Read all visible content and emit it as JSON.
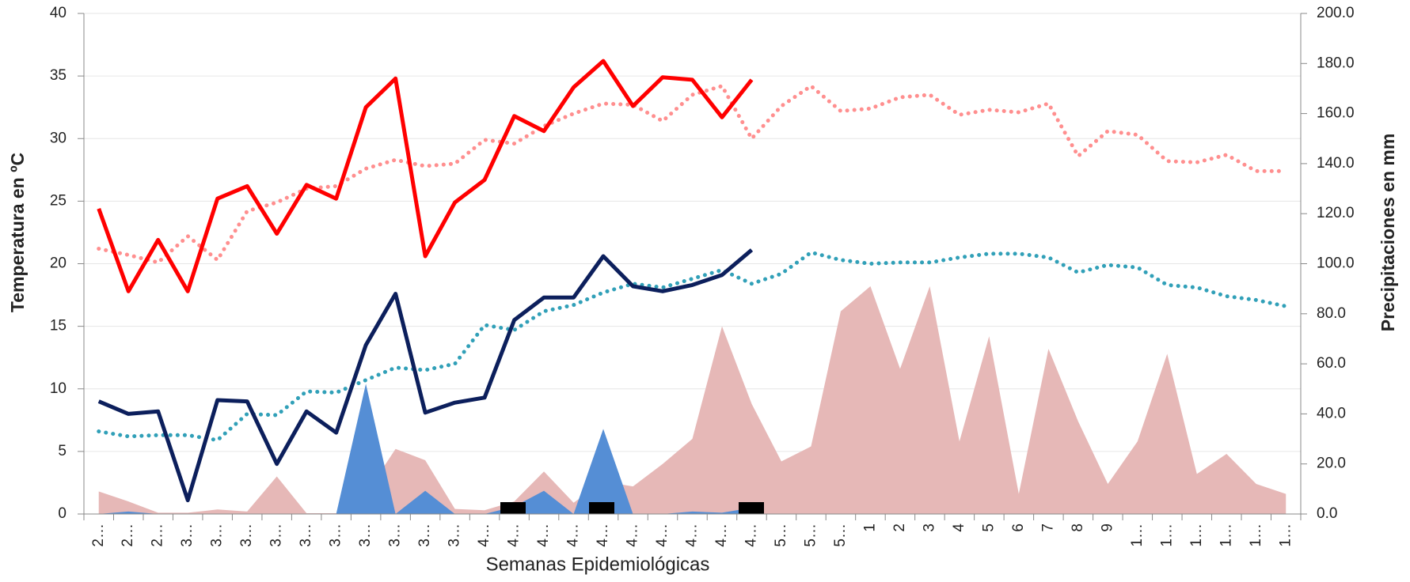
{
  "chart_data": {
    "type": "combo",
    "xlabel": "Semanas Epidemiológicas",
    "ylabel": "Temperatura en ºC",
    "y2label": "Precipitaciones en mm",
    "categories": [
      "2…",
      "2…",
      "2…",
      "3…",
      "3…",
      "3…",
      "3…",
      "3…",
      "3…",
      "3…",
      "3…",
      "3…",
      "3…",
      "4…",
      "4…",
      "4…",
      "4…",
      "4…",
      "4…",
      "4…",
      "4…",
      "4…",
      "4…",
      "5…",
      "5…",
      "5…",
      "1",
      "2",
      "3",
      "4",
      "5",
      "6",
      "7",
      "8",
      "9",
      "1…",
      "1…",
      "1…",
      "1…",
      "1…",
      "1…"
    ],
    "ylim": [
      0,
      40
    ],
    "yticks": [
      0,
      5,
      10,
      15,
      20,
      25,
      30,
      35,
      40
    ],
    "y2lim": [
      0,
      200
    ],
    "y2ticks": [
      {
        "value": 0,
        "label": "0.0"
      },
      {
        "value": 20,
        "label": "20.0"
      },
      {
        "value": 40,
        "label": "40.0"
      },
      {
        "value": 60,
        "label": "60.0"
      },
      {
        "value": 80,
        "label": "80.0"
      },
      {
        "value": 100,
        "label": "100.0"
      },
      {
        "value": 120,
        "label": "120.0"
      },
      {
        "value": 140,
        "label": "140.0"
      },
      {
        "value": 160,
        "label": "160.0"
      },
      {
        "value": 180,
        "label": "180.0"
      },
      {
        "value": 200,
        "label": "200.0"
      }
    ],
    "grid": true,
    "series": [
      {
        "type": "area",
        "axis": "y2",
        "color": "#e6b8b7",
        "values": [
          9,
          5,
          0.5,
          0.5,
          1.8,
          1,
          15,
          0.3,
          0.3,
          8,
          26,
          21.5,
          2,
          1.5,
          5,
          17,
          4.5,
          13,
          11,
          20,
          30,
          75,
          44,
          21,
          27,
          81,
          91,
          58,
          91,
          29,
          71,
          8,
          66,
          37,
          12,
          29,
          64,
          16,
          24,
          12,
          8
        ]
      },
      {
        "type": "area",
        "axis": "y2",
        "color": "#558ed5",
        "values": [
          0,
          1,
          0,
          0,
          0,
          0,
          0,
          0,
          0,
          52,
          0,
          9.3,
          0,
          0,
          3,
          9.3,
          0,
          34,
          0,
          0,
          1,
          0.5,
          2.5,
          null,
          null,
          null,
          null,
          null,
          null,
          null,
          null,
          null,
          null,
          null,
          null,
          null,
          null,
          null,
          null,
          null,
          null
        ]
      },
      {
        "type": "line",
        "dotted": true,
        "color": "#ff8f8f",
        "values": [
          21.2,
          20.7,
          20.1,
          22.2,
          20.3,
          24.2,
          24.9,
          26.0,
          26.2,
          27.6,
          28.3,
          27.8,
          28.0,
          29.9,
          29.6,
          31.0,
          32.0,
          32.8,
          32.7,
          31.4,
          33.5,
          34.2,
          30.0,
          32.6,
          34.2,
          32.2,
          32.4,
          33.3,
          33.5,
          31.9,
          32.3,
          32.1,
          32.8,
          28.6,
          30.6,
          30.3,
          28.2,
          28.1,
          28.7,
          27.4,
          27.4
        ]
      },
      {
        "type": "line",
        "dotted": true,
        "color": "#31a0b8",
        "values": [
          6.6,
          6.2,
          6.3,
          6.3,
          5.9,
          8.0,
          7.9,
          9.8,
          9.7,
          10.7,
          11.7,
          11.5,
          12.0,
          15.1,
          14.7,
          16.2,
          16.7,
          17.7,
          18.4,
          18.1,
          18.8,
          19.5,
          18.4,
          19.2,
          20.9,
          20.3,
          20.0,
          20.1,
          20.1,
          20.5,
          20.8,
          20.8,
          20.5,
          19.3,
          19.9,
          19.7,
          18.3,
          18.1,
          17.4,
          17.1,
          16.6
        ]
      },
      {
        "type": "line",
        "dotted": false,
        "color": "#ff0000",
        "values": [
          24.4,
          17.8,
          21.9,
          17.8,
          25.2,
          26.2,
          22.4,
          26.3,
          25.2,
          32.5,
          34.8,
          20.6,
          24.9,
          26.7,
          31.8,
          30.6,
          34.1,
          36.2,
          32.6,
          34.9,
          34.7,
          31.7,
          34.7,
          null,
          null,
          null,
          null,
          null,
          null,
          null,
          null,
          null,
          null,
          null,
          null,
          null,
          null,
          null,
          null,
          null,
          null
        ]
      },
      {
        "type": "line",
        "dotted": false,
        "color": "#0c1f5c",
        "values": [
          9.0,
          8.0,
          8.2,
          1.1,
          9.1,
          9.0,
          4.0,
          8.2,
          6.5,
          13.5,
          17.6,
          8.1,
          8.9,
          9.3,
          15.5,
          17.3,
          17.3,
          20.6,
          18.2,
          17.8,
          18.3,
          19.1,
          21.1,
          null,
          null,
          null,
          null,
          null,
          null,
          null,
          null,
          null,
          null,
          null,
          null,
          null,
          null,
          null,
          null,
          null,
          null
        ]
      }
    ]
  }
}
